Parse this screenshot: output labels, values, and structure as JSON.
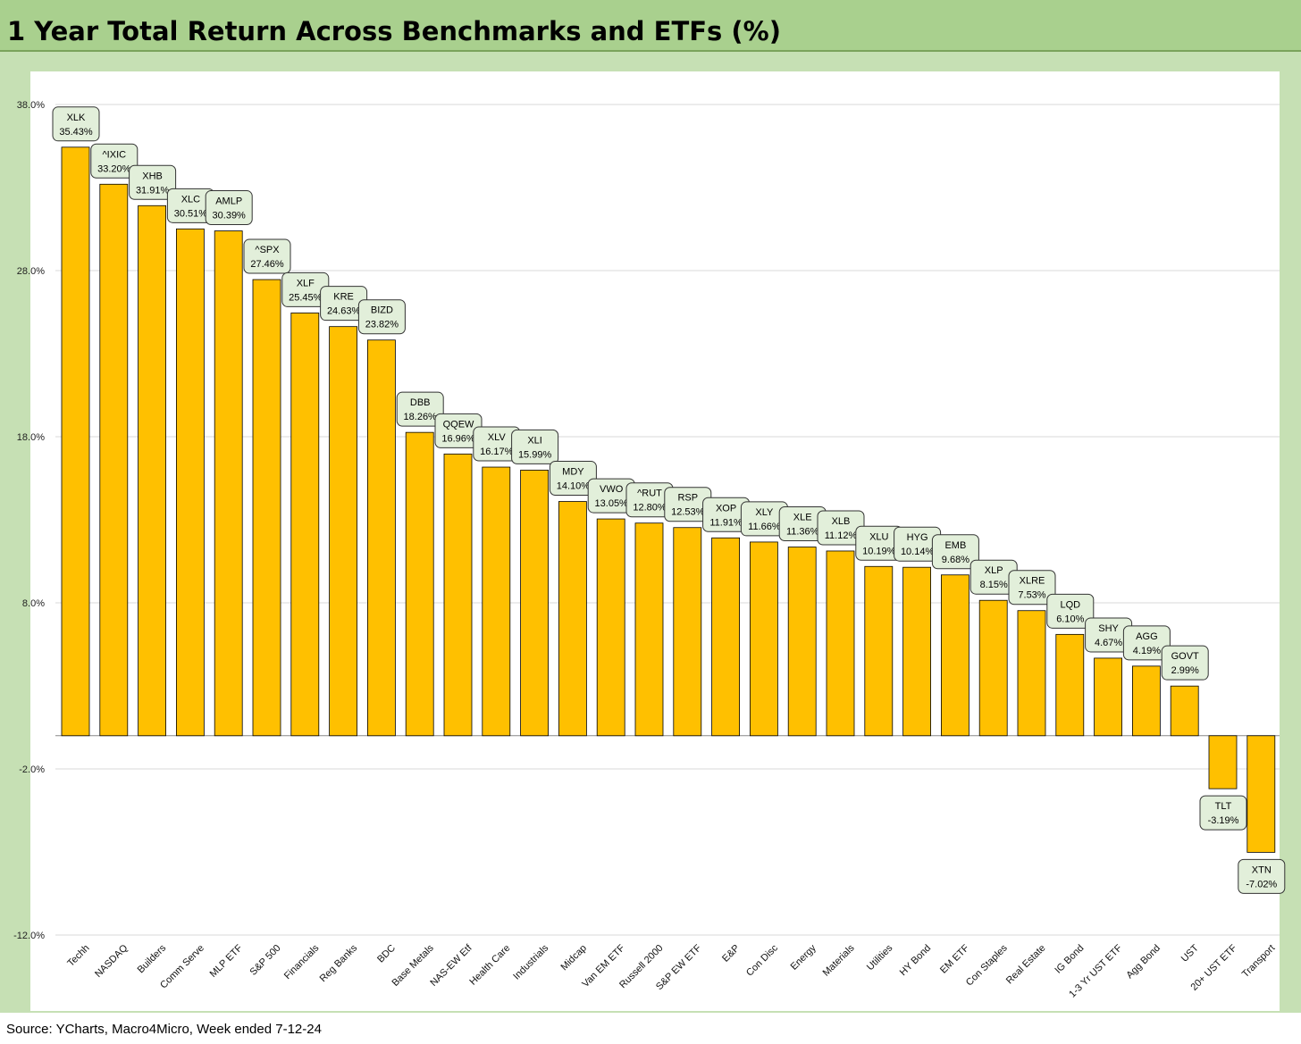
{
  "header": {
    "title": "1 Year Total Return Across Benchmarks and ETFs (%)"
  },
  "footer": {
    "source": "Source: YCharts, Macro4Micro, Week ended 7-12-24"
  },
  "colors": {
    "bar": "#ffc000",
    "bar_border": "#000000",
    "header_bg": "#a9d08e",
    "frame_bg": "#c6e0b4",
    "label_bg": "#e2efda"
  },
  "chart_data": {
    "type": "bar",
    "title": "1 Year Total Return Across Benchmarks and ETFs (%)",
    "xlabel": "",
    "ylabel": "",
    "ylim": [
      -12,
      38
    ],
    "yticks": [
      38,
      28,
      18,
      8,
      -2,
      -12
    ],
    "ytick_labels": [
      "38.0%",
      "28.0%",
      "18.0%",
      "8.0%",
      "-2.0%",
      "-12.0%"
    ],
    "grid": true,
    "legend": "none",
    "categories": [
      "Techh",
      "NASDAQ",
      "Builders",
      "Comm Serve",
      "MLP ETF",
      "S&P 500",
      "Financials",
      "Reg Banks",
      "BDC",
      "Base Metals",
      "NAS-EW Etf",
      "Health Care",
      "Industrials",
      "Midcap",
      "Van EM ETF",
      "Russell 2000",
      "S&P EW ETF",
      "E&P",
      "Con Disc",
      "Energy",
      "Materials",
      "Utilities",
      "HY Bond",
      "EM ETF",
      "Con Staples",
      "Real Estate",
      "IG Bond",
      "1-3 Yr UST ETF",
      "Agg Bond",
      "UST",
      "20+ UST ETF",
      "Transport"
    ],
    "tickers": [
      "XLK",
      "^IXIC",
      "XHB",
      "XLC",
      "AMLP",
      "^SPX",
      "XLF",
      "KRE",
      "BIZD",
      "DBB",
      "QQEW",
      "XLV",
      "XLI",
      "MDY",
      "VWO",
      "^RUT",
      "RSP",
      "XOP",
      "XLY",
      "XLE",
      "XLB",
      "XLU",
      "HYG",
      "EMB",
      "XLP",
      "XLRE",
      "LQD",
      "SHY",
      "AGG",
      "GOVT",
      "TLT",
      "XTN"
    ],
    "values": [
      35.43,
      33.2,
      31.91,
      30.51,
      30.39,
      27.46,
      25.45,
      24.63,
      23.82,
      18.26,
      16.96,
      16.17,
      15.99,
      14.1,
      13.05,
      12.8,
      12.53,
      11.91,
      11.66,
      11.36,
      11.12,
      10.19,
      10.14,
      9.68,
      8.15,
      7.53,
      6.1,
      4.67,
      4.19,
      2.99,
      -3.19,
      -7.02
    ],
    "value_labels": [
      "35.43%",
      "33.20%",
      "31.91%",
      "30.51%",
      "30.39%",
      "27.46%",
      "25.45%",
      "24.63%",
      "23.82%",
      "18.26%",
      "16.96%",
      "16.17%",
      "15.99%",
      "14.10%",
      "13.05%",
      "12.80%",
      "12.53%",
      "11.91%",
      "11.66%",
      "11.36%",
      "11.12%",
      "10.19%",
      "10.14%",
      "9.68%",
      "8.15%",
      "7.53%",
      "6.10%",
      "4.67%",
      "4.19%",
      "2.99%",
      "-3.19%",
      "-7.02%"
    ]
  }
}
